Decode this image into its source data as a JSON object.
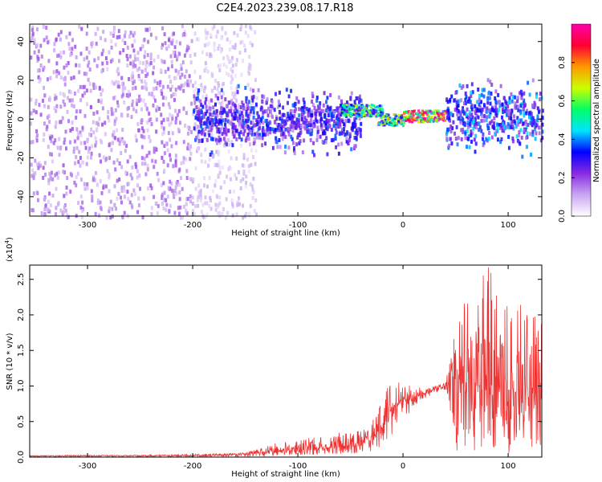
{
  "title": "C2E4.2023.239.08.17.R18",
  "colors": {
    "accent": "#ee3333",
    "cmap_low": "#ffffff",
    "cmap_points": [
      "#ffffff",
      "#c9a6f2",
      "#8a2be2",
      "#0000ff",
      "#00e5ff",
      "#00ff66",
      "#ccff00",
      "#ff9900",
      "#ff0033",
      "#ff00aa"
    ]
  },
  "chart_data": [
    {
      "type": "heatmap",
      "title": "",
      "xlabel": "Height of straight line (km)",
      "ylabel": "Frequency (Hz)",
      "xlim": [
        -355,
        132
      ],
      "ylim": [
        -50,
        49
      ],
      "xticks": [
        -300,
        -200,
        -100,
        0,
        100
      ],
      "yticks": [
        -40,
        -20,
        0,
        20,
        40
      ],
      "grid": false,
      "colorbar": {
        "label": "Normalized spectral amplitude",
        "ticks": [
          "0.0",
          "0.2",
          "0.4",
          "0.6",
          "0.8"
        ],
        "range": [
          0,
          1
        ]
      },
      "features": [
        {
          "x_range": [
            -355,
            -200
          ],
          "frequency_spread": [
            -50,
            49
          ],
          "amplitude": 0.15,
          "description": "scattered noise"
        },
        {
          "x_range": [
            -200,
            -140
          ],
          "frequency_spread": [
            -50,
            49
          ],
          "amplitude": 0.08,
          "description": "sparse noise"
        },
        {
          "x_range": [
            -200,
            -40
          ],
          "frequency_band": [
            -20,
            20
          ],
          "amplitude": 0.3
        },
        {
          "x_range": [
            -60,
            -20
          ],
          "frequency_center": 5,
          "amplitude": 0.55
        },
        {
          "x_range": [
            -25,
            0
          ],
          "frequency_center": 0,
          "amplitude": 0.6
        },
        {
          "x_range": [
            0,
            40
          ],
          "frequency_center": 2,
          "amplitude": 0.95
        },
        {
          "x_range": [
            40,
            132
          ],
          "frequency_band": [
            -20,
            25
          ],
          "amplitude": 0.35
        }
      ]
    },
    {
      "type": "line",
      "title": "",
      "xlabel": "Height of straight line (km)",
      "ylabel": "SNR (10 * v/v)",
      "y_multiplier": "(x10",
      "y_multiplier_exp": "4",
      "xlim": [
        -355,
        132
      ],
      "ylim": [
        0,
        2.7
      ],
      "xticks": [
        -300,
        -200,
        -100,
        0,
        100
      ],
      "yticks": [
        "0.0",
        "0.5",
        "1.0",
        "1.5",
        "2.0",
        "2.5"
      ],
      "grid": false,
      "series": [
        {
          "color": "#ee3333",
          "envelope": {
            "x": [
              -355,
              -300,
              -250,
              -200,
              -150,
              -120,
              -100,
              -80,
              -60,
              -40,
              -30,
              -20,
              -10,
              0,
              10,
              20,
              30,
              40,
              45,
              50,
              55,
              60,
              70,
              80,
              90,
              100,
              110,
              120,
              132
            ],
            "y": [
              0.02,
              0.02,
              0.02,
              0.02,
              0.04,
              0.08,
              0.1,
              0.12,
              0.15,
              0.2,
              0.28,
              0.4,
              0.7,
              0.8,
              0.85,
              0.9,
              0.95,
              1.0,
              1.05,
              1.1,
              1.1,
              1.05,
              1.0,
              1.0,
              0.95,
              0.95,
              0.9,
              0.9,
              0.9
            ],
            "max": [
              0.02,
              0.03,
              0.03,
              0.04,
              0.06,
              0.2,
              0.25,
              0.3,
              0.35,
              0.4,
              0.6,
              0.9,
              1.1,
              1.05,
              1.0,
              1.0,
              1.0,
              1.05,
              1.4,
              1.9,
              2.4,
              2.3,
              2.3,
              2.8,
              2.4,
              2.3,
              2.2,
              2.1,
              1.9
            ],
            "min": [
              0.0,
              0.0,
              0.0,
              0.0,
              0.0,
              0.02,
              0.03,
              0.03,
              0.04,
              0.05,
              0.08,
              0.15,
              0.3,
              0.5,
              0.7,
              0.8,
              0.9,
              0.95,
              0.5,
              0.1,
              0.05,
              0.05,
              0.05,
              0.05,
              0.05,
              0.05,
              0.05,
              0.05,
              0.1
            ]
          }
        }
      ]
    }
  ]
}
